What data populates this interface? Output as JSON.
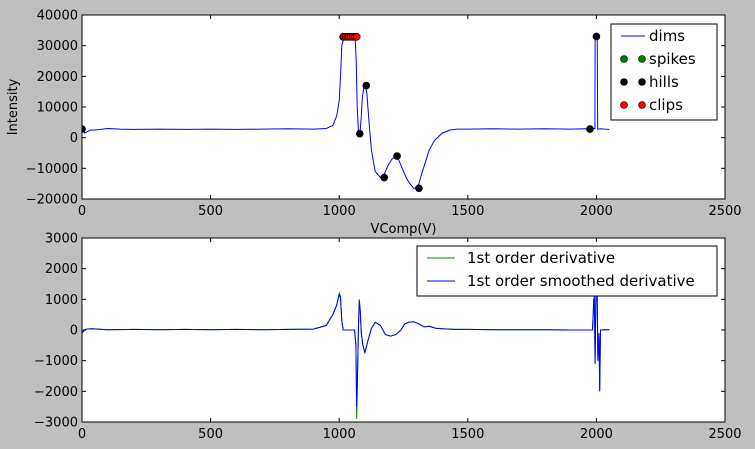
{
  "chart_data": [
    {
      "type": "line",
      "title": "",
      "xlabel": "VComp(V)",
      "ylabel": "Intensity",
      "xlim": [
        0,
        2500
      ],
      "ylim": [
        -20000,
        40000
      ],
      "xticks": [
        0,
        500,
        1000,
        1500,
        2000,
        2500
      ],
      "yticks": [
        -20000,
        -10000,
        0,
        10000,
        20000,
        30000,
        40000
      ],
      "xtick_labels": [
        "0",
        "500",
        "1000",
        "1500",
        "2000",
        "2500"
      ],
      "ytick_labels": [
        "−20000",
        "−10000",
        "0",
        "10000",
        "20000",
        "30000",
        "40000"
      ],
      "grid": false,
      "legend_position": "top-right",
      "series": [
        {
          "name": "dims",
          "kind": "line",
          "color": "#0000ff",
          "x": [
            0,
            10,
            30,
            60,
            100,
            150,
            200,
            300,
            400,
            500,
            600,
            700,
            800,
            900,
            950,
            975,
            990,
            1000,
            1005,
            1010,
            1020,
            1030,
            1040,
            1050,
            1058,
            1062,
            1066,
            1070,
            1075,
            1080,
            1085,
            1090,
            1096,
            1102,
            1108,
            1115,
            1125,
            1140,
            1160,
            1175,
            1190,
            1205,
            1220,
            1230,
            1245,
            1260,
            1275,
            1290,
            1300,
            1310,
            1320,
            1335,
            1350,
            1370,
            1400,
            1430,
            1460,
            1500,
            1600,
            1700,
            1800,
            1900,
            1960,
            1975,
            1985,
            1990,
            1994,
            1995,
            1997,
            2000,
            2003,
            2005,
            2010,
            2020,
            2030,
            2050
          ],
          "y": [
            2800,
            1500,
            2400,
            2600,
            3000,
            2800,
            2700,
            2800,
            2700,
            2800,
            2700,
            2800,
            2900,
            2800,
            3000,
            4000,
            7000,
            12000,
            20000,
            30000,
            32900,
            32900,
            32900,
            32900,
            32900,
            32900,
            25000,
            10000,
            1500,
            1000,
            6000,
            13000,
            16500,
            17200,
            14000,
            6000,
            -4000,
            -11000,
            -13000,
            -12000,
            -9000,
            -7000,
            -6000,
            -7000,
            -10000,
            -13000,
            -15000,
            -16500,
            -16500,
            -15000,
            -12000,
            -8000,
            -4000,
            -1000,
            1500,
            2500,
            2800,
            2800,
            2900,
            2800,
            2900,
            2800,
            2900,
            2800,
            2900,
            3000,
            3000,
            33000,
            33000,
            33000,
            33000,
            2800,
            2800,
            2900,
            2800,
            2700
          ]
        },
        {
          "name": "spikes",
          "kind": "marker",
          "color": "#008000",
          "x": [],
          "y": []
        },
        {
          "name": "hills",
          "kind": "marker",
          "color": "#000000",
          "x": [
            0,
            1015,
            1022,
            1029,
            1036,
            1043,
            1050,
            1058,
            1065,
            1080,
            1105,
            1175,
            1225,
            1310,
            1975,
            2000
          ],
          "y": [
            2800,
            32900,
            32900,
            32900,
            32900,
            32900,
            32900,
            32900,
            32900,
            1300,
            17000,
            -13000,
            -6000,
            -16500,
            2800,
            33000
          ]
        },
        {
          "name": "clips",
          "kind": "marker",
          "color": "#ff0000",
          "x": [
            1018,
            1025,
            1032,
            1039,
            1046,
            1053,
            1061,
            1068
          ],
          "y": [
            32900,
            32900,
            32900,
            32900,
            32900,
            32900,
            32900,
            32900
          ]
        }
      ]
    },
    {
      "type": "line",
      "title": "",
      "xlabel": "",
      "ylabel": "",
      "xlim": [
        0,
        2500
      ],
      "ylim": [
        -3000,
        3000
      ],
      "xticks": [
        0,
        500,
        1000,
        1500,
        2000,
        2500
      ],
      "yticks": [
        -3000,
        -2000,
        -1000,
        0,
        1000,
        2000,
        3000
      ],
      "xtick_labels": [
        "0",
        "500",
        "1000",
        "1500",
        "2000",
        "2500"
      ],
      "ytick_labels": [
        "−3000",
        "−2000",
        "−1000",
        "0",
        "1000",
        "2000",
        "3000"
      ],
      "grid": false,
      "legend_position": "top-right",
      "series": [
        {
          "name": "1st order derivative",
          "kind": "line",
          "color": "#008000",
          "x": [
            0,
            5,
            15,
            40,
            100,
            200,
            300,
            400,
            500,
            600,
            700,
            800,
            900,
            950,
            975,
            990,
            1000,
            1005,
            1010,
            1015,
            1060,
            1065,
            1068,
            1072,
            1075,
            1078,
            1082,
            1086,
            1092,
            1100,
            1110,
            1125,
            1140,
            1160,
            1180,
            1200,
            1220,
            1240,
            1255,
            1270,
            1290,
            1310,
            1330,
            1350,
            1375,
            1400,
            1450,
            1500,
            1600,
            1700,
            1800,
            1900,
            1985,
            1990,
            1992,
            1995,
            1998,
            2000,
            2003,
            2006,
            2010,
            2013,
            2016,
            2030,
            2050
          ],
          "y": [
            -100,
            -50,
            30,
            40,
            10,
            20,
            10,
            20,
            10,
            20,
            10,
            20,
            30,
            150,
            500,
            800,
            1200,
            1100,
            300,
            0,
            0,
            -500,
            -2900,
            -1200,
            200,
            1000,
            600,
            -100,
            -500,
            -750,
            -400,
            50,
            250,
            150,
            -150,
            -200,
            -150,
            0,
            200,
            250,
            270,
            200,
            100,
            120,
            60,
            40,
            20,
            20,
            10,
            10,
            10,
            0,
            0,
            1000,
            1100,
            -1100,
            1000,
            1200,
            1100,
            -1000,
            -100,
            -2000,
            0,
            10,
            10
          ]
        },
        {
          "name": "1st order smoothed derivative",
          "kind": "line",
          "color": "#0000ff",
          "x": [
            0,
            5,
            15,
            40,
            100,
            200,
            300,
            400,
            500,
            600,
            700,
            800,
            900,
            950,
            975,
            990,
            1000,
            1005,
            1010,
            1015,
            1060,
            1065,
            1068,
            1072,
            1075,
            1078,
            1082,
            1086,
            1092,
            1100,
            1110,
            1125,
            1140,
            1160,
            1180,
            1200,
            1220,
            1240,
            1255,
            1270,
            1290,
            1310,
            1330,
            1350,
            1375,
            1400,
            1450,
            1500,
            1600,
            1700,
            1800,
            1900,
            1985,
            1990,
            1992,
            1995,
            1998,
            2000,
            2003,
            2006,
            2010,
            2013,
            2016,
            2030,
            2050
          ],
          "y": [
            -100,
            -50,
            30,
            40,
            10,
            20,
            10,
            20,
            10,
            20,
            10,
            20,
            30,
            150,
            500,
            800,
            1150,
            1050,
            300,
            0,
            0,
            -500,
            -2500,
            -1200,
            200,
            950,
            600,
            -100,
            -500,
            -730,
            -400,
            50,
            250,
            150,
            -150,
            -200,
            -150,
            0,
            200,
            250,
            270,
            200,
            100,
            120,
            60,
            40,
            20,
            20,
            10,
            10,
            10,
            0,
            0,
            1000,
            1100,
            -1100,
            1000,
            1200,
            1100,
            -1000,
            -100,
            -2000,
            0,
            10,
            10
          ]
        }
      ]
    }
  ]
}
